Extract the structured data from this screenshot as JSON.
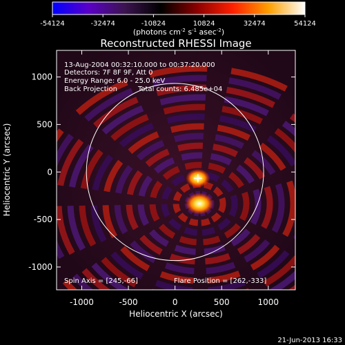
{
  "chart_data": {
    "type": "heatmap",
    "title": "Reconstructed RHESSI Image",
    "xlabel": "Heliocentric X (arcsec)",
    "ylabel": "Heliocentric Y (arcsec)",
    "xlim": [
      -1270,
      1290
    ],
    "ylim": [
      -1240,
      1280
    ],
    "xticks": [
      -1000,
      -500,
      0,
      500,
      1000
    ],
    "yticks": [
      -1000,
      -500,
      0,
      500,
      1000
    ],
    "colorbar": {
      "range": [
        -54124,
        54124
      ],
      "ticks": [
        -54124,
        -32474,
        -10824,
        10824,
        32474,
        54124
      ],
      "label_main": "(photons cm",
      "label_sup1": "-2",
      "label_mid": " s",
      "label_sup2": "-1",
      "label_end": " asec",
      "label_sup3": "-2",
      "label_close": ")",
      "colors": [
        "#0000ff",
        "#5a00c8",
        "#3c1450",
        "#000000",
        "#8a0000",
        "#ff2000",
        "#ffa000",
        "#ffffff"
      ]
    },
    "annotations": {
      "time_range": "13-Aug-2004 00:32:10.000 to 00:37:20.000",
      "detectors": "Detectors: 7F 8F 9F, Att 0",
      "energy_range": "Energy Range: 6.0 - 25.0 keV",
      "method": "Back Projection",
      "total_counts": "Total counts: 6.485e+04",
      "spin_axis": "Spin Axis = [245,-66]",
      "flare_position": "Flare Position = [262,-333]"
    },
    "limb_radius": 950,
    "sources": [
      {
        "x": 262,
        "y": -333,
        "relative_intensity": 1.0
      },
      {
        "x": 245,
        "y": -66,
        "relative_intensity": 0.85
      }
    ],
    "spin_axis_marker": {
      "x": 245,
      "y": -66
    }
  },
  "timestamp": "21-Jun-2013 16:33"
}
